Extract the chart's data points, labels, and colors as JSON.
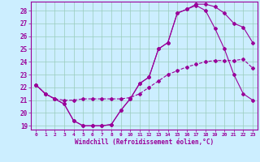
{
  "xlabel": "Windchill (Refroidissement éolien,°C)",
  "bg_color": "#cceeff",
  "line_color": "#990099",
  "grid_color": "#99ccbb",
  "xlim": [
    -0.5,
    23.5
  ],
  "ylim": [
    18.7,
    28.7
  ],
  "yticks": [
    19,
    20,
    21,
    22,
    23,
    24,
    25,
    26,
    27,
    28
  ],
  "xticks": [
    0,
    1,
    2,
    3,
    4,
    5,
    6,
    7,
    8,
    9,
    10,
    11,
    12,
    13,
    14,
    15,
    16,
    17,
    18,
    19,
    20,
    21,
    22,
    23
  ],
  "line1_x": [
    0,
    1,
    2,
    3,
    4,
    5,
    6,
    7,
    8,
    9,
    10,
    11,
    12,
    13,
    14,
    15,
    16,
    17,
    18,
    19,
    20,
    21,
    22,
    23
  ],
  "line1_y": [
    22.2,
    21.5,
    21.1,
    20.7,
    19.4,
    19.0,
    19.0,
    19.0,
    19.1,
    20.2,
    21.1,
    22.3,
    22.8,
    25.0,
    25.5,
    27.8,
    28.1,
    28.4,
    28.0,
    26.6,
    25.0,
    23.0,
    21.5,
    21.0
  ],
  "line2_x": [
    0,
    1,
    2,
    3,
    4,
    5,
    6,
    7,
    8,
    9,
    10,
    11,
    12,
    13,
    14,
    15,
    16,
    17,
    18,
    19,
    20,
    21,
    22,
    23
  ],
  "line2_y": [
    22.2,
    21.5,
    21.1,
    20.7,
    19.4,
    19.0,
    19.0,
    19.0,
    19.1,
    20.2,
    21.1,
    22.3,
    22.8,
    25.0,
    25.5,
    27.8,
    28.1,
    28.5,
    28.5,
    28.3,
    27.8,
    27.0,
    26.7,
    25.5
  ],
  "line3_x": [
    0,
    1,
    2,
    3,
    4,
    5,
    6,
    7,
    8,
    9,
    10,
    11,
    12,
    13,
    14,
    15,
    16,
    17,
    18,
    19,
    20,
    21,
    22,
    23
  ],
  "line3_y": [
    22.2,
    21.5,
    21.1,
    21.0,
    21.0,
    21.1,
    21.1,
    21.1,
    21.1,
    21.1,
    21.2,
    21.5,
    22.0,
    22.5,
    23.0,
    23.3,
    23.6,
    23.8,
    24.0,
    24.1,
    24.1,
    24.1,
    24.2,
    23.5
  ]
}
